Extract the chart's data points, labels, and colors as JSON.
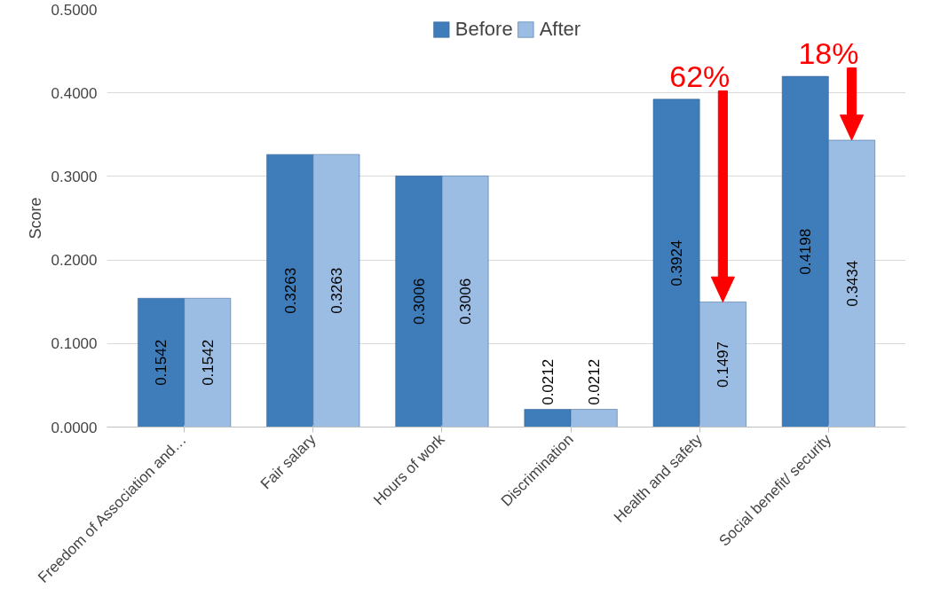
{
  "chart_data": {
    "type": "bar",
    "ylabel": "Score",
    "categories": [
      "Freedom of Association and…",
      "Fair salary",
      "Hours of work",
      "Discrimination",
      "Health and safety",
      "Social benefit/ security"
    ],
    "series": [
      {
        "name": "Before",
        "color": "#3f7cba",
        "values": [
          0.1542,
          0.3263,
          0.3006,
          0.0212,
          0.3924,
          0.4198
        ]
      },
      {
        "name": "After",
        "color": "#9bbce3",
        "values": [
          0.1542,
          0.3263,
          0.3006,
          0.0212,
          0.1497,
          0.3434
        ]
      }
    ],
    "ylim": [
      0,
      0.5
    ],
    "yticks": [
      {
        "value": 0,
        "label": "0.0000"
      },
      {
        "value": 0.1,
        "label": "0.1000"
      },
      {
        "value": 0.2,
        "label": "0.2000"
      },
      {
        "value": 0.3,
        "label": "0.3000"
      },
      {
        "value": 0.4,
        "label": "0.4000"
      },
      {
        "value": 0.5,
        "label": "0.5000"
      }
    ],
    "grid": "y",
    "legend": "top",
    "data_labels": true,
    "annotations": [
      "62%",
      "18%"
    ]
  }
}
